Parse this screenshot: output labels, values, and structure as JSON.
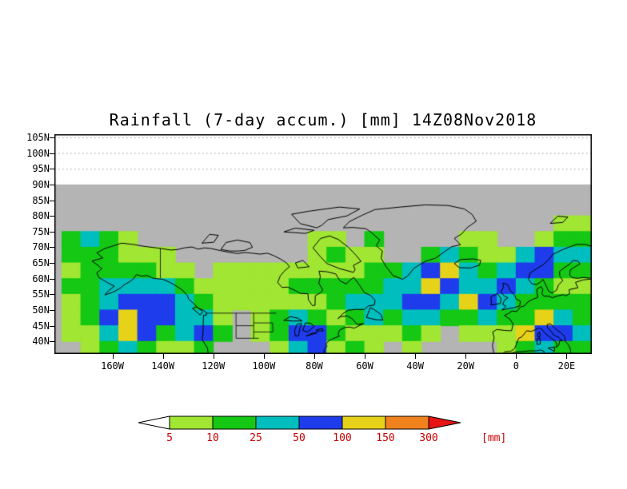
{
  "title": "Rainfall (7-day accum.) [mm] 14Z08Nov2018",
  "axes": {
    "y_ticks": [
      {
        "label": "105N",
        "value": 105
      },
      {
        "label": "100N",
        "value": 100
      },
      {
        "label": "95N",
        "value": 95
      },
      {
        "label": "90N",
        "value": 90
      },
      {
        "label": "85N",
        "value": 85
      },
      {
        "label": "80N",
        "value": 80
      },
      {
        "label": "75N",
        "value": 75
      },
      {
        "label": "70N",
        "value": 70
      },
      {
        "label": "65N",
        "value": 65
      },
      {
        "label": "60N",
        "value": 60
      },
      {
        "label": "55N",
        "value": 55
      },
      {
        "label": "50N",
        "value": 50
      },
      {
        "label": "45N",
        "value": 45
      },
      {
        "label": "40N",
        "value": 40
      }
    ],
    "x_ticks": [
      {
        "label": "160W",
        "value": -160
      },
      {
        "label": "140W",
        "value": -140
      },
      {
        "label": "120W",
        "value": -120
      },
      {
        "label": "100W",
        "value": -100
      },
      {
        "label": "80W",
        "value": -80
      },
      {
        "label": "60W",
        "value": -60
      },
      {
        "label": "40W",
        "value": -40
      },
      {
        "label": "20W",
        "value": -20
      },
      {
        "label": "0",
        "value": 0
      },
      {
        "label": "20E",
        "value": 20
      }
    ]
  },
  "legend": {
    "boundary_labels": [
      "5",
      "10",
      "25",
      "50",
      "100",
      "150",
      "300"
    ],
    "units_label": "[mm]",
    "label_color": "#c80000",
    "below_min_color": "#ffffff",
    "above_max_color": "#e61414",
    "segment_colors": [
      "#a0e632",
      "#14c814",
      "#00bebe",
      "#1e3cec",
      "#e6d219",
      "#f0821e"
    ]
  },
  "chart_data": {
    "type": "heatmap",
    "title": "Rainfall (7-day accum.) [mm] 14Z08Nov2018",
    "variable": "Rainfall (7-day accumulation)",
    "units": "mm",
    "time": "14Z08Nov2018",
    "lon_range_deg": [
      -183,
      30
    ],
    "lat_range_deg": [
      36,
      106
    ],
    "data_region_max_lat": 90,
    "background_color": "#b4b4b4",
    "grid_dotted_lats": [
      105,
      100,
      95
    ],
    "levels_mm": [
      5,
      10,
      25,
      50,
      100,
      150,
      300
    ],
    "level_colors": [
      "#a0e632",
      "#14c814",
      "#00bebe",
      "#1e3cec",
      "#e6d219",
      "#f0821e",
      "#e61414"
    ],
    "grid": {
      "lon_start": -180,
      "dlon": 7.5,
      "lat_start": 90,
      "dlat": -5,
      "encoding": "each char: 0=<5mm(none) 1=5-10 2=10-25 3=25-50 4=50-100 5=100-150 6=150-300 7=>300",
      "rows": [
        "0000000000000000000000000000",
        "0000000000000000000000000000",
        "0000000000000000000000000011",
        "2321000000000110200001100122",
        "2221110000000121100232113433",
        "1222211011111111223453234422",
        "2233332111112222233543343211",
        "1234443211111123334435432222",
        "1245443310123212323322322532",
        "1135423420124421112101115443",
        "0123211200013412101000012322"
      ]
    }
  }
}
